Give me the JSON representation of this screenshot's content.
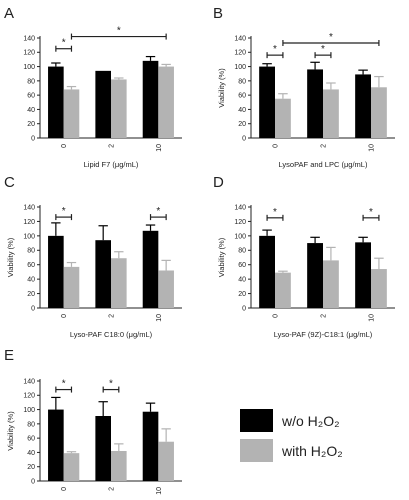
{
  "legend": {
    "items": [
      {
        "label": "w/o H₂O₂",
        "color": "#000000"
      },
      {
        "label": "with H₂O₂",
        "color": "#b3b3b3"
      }
    ]
  },
  "chart_data": [
    {
      "type": "bar",
      "panel_label": "A",
      "categories": [
        "0",
        "2",
        "10"
      ],
      "xlabel": "Lipid F7 (μg/mL)",
      "ylabel": "",
      "ylim": [
        0,
        140
      ],
      "yticks": [
        0,
        20,
        40,
        60,
        80,
        100,
        120,
        140
      ],
      "series": [
        {
          "name": "w/o H₂O₂",
          "values": [
            100,
            94,
            108
          ],
          "errors": [
            5,
            0,
            6
          ]
        },
        {
          "name": "with H₂O₂",
          "values": [
            68,
            82,
            100
          ],
          "errors": [
            4,
            2,
            3
          ]
        }
      ],
      "significance": [
        {
          "from": {
            "cat": 0,
            "series": 0
          },
          "to": {
            "cat": 0,
            "series": 1
          },
          "y": 125,
          "label": "*"
        },
        {
          "from": {
            "cat": 0,
            "series": 1
          },
          "to": {
            "cat": 2,
            "series": 1
          },
          "y": 142,
          "label": "*"
        }
      ]
    },
    {
      "type": "bar",
      "panel_label": "B",
      "categories": [
        "0",
        "2",
        "10"
      ],
      "xlabel": "LysoPAF and LPC (μg/mL)",
      "ylabel": "Viability (%)",
      "ylim": [
        0,
        140
      ],
      "yticks": [
        0,
        20,
        40,
        60,
        80,
        100,
        120,
        140
      ],
      "series": [
        {
          "name": "w/o H₂O₂",
          "values": [
            100,
            96,
            89
          ],
          "errors": [
            4,
            10,
            6
          ]
        },
        {
          "name": "with H₂O₂",
          "values": [
            55,
            68,
            71
          ],
          "errors": [
            7,
            9,
            15
          ]
        }
      ],
      "significance": [
        {
          "from": {
            "cat": 0,
            "series": 0
          },
          "to": {
            "cat": 0,
            "series": 1
          },
          "y": 116,
          "label": "*"
        },
        {
          "from": {
            "cat": 1,
            "series": 0
          },
          "to": {
            "cat": 1,
            "series": 1
          },
          "y": 116,
          "label": "*"
        },
        {
          "from": {
            "cat": 0,
            "series": 1
          },
          "to": {
            "cat": 2,
            "series": 1
          },
          "y": 133,
          "label": "*"
        }
      ]
    },
    {
      "type": "bar",
      "panel_label": "C",
      "categories": [
        "0",
        "2",
        "10"
      ],
      "xlabel": "Lyso-PAF C18:0 (μg/mL)",
      "ylabel": "Viability (%)",
      "ylim": [
        0,
        140
      ],
      "yticks": [
        0,
        20,
        40,
        60,
        80,
        100,
        120,
        140
      ],
      "series": [
        {
          "name": "w/o H₂O₂",
          "values": [
            100,
            94,
            107
          ],
          "errors": [
            18,
            20,
            8
          ]
        },
        {
          "name": "with H₂O₂",
          "values": [
            57,
            69,
            52
          ],
          "errors": [
            6,
            9,
            14
          ]
        }
      ],
      "significance": [
        {
          "from": {
            "cat": 0,
            "series": 0
          },
          "to": {
            "cat": 0,
            "series": 1
          },
          "y": 126,
          "label": "*"
        },
        {
          "from": {
            "cat": 2,
            "series": 0
          },
          "to": {
            "cat": 2,
            "series": 1
          },
          "y": 126,
          "label": "*"
        }
      ]
    },
    {
      "type": "bar",
      "panel_label": "D",
      "categories": [
        "0",
        "2",
        "10"
      ],
      "xlabel": "Lyso-PAF (9Z)-C18:1 (μg/mL)",
      "ylabel": "Viability (%)",
      "ylim": [
        0,
        140
      ],
      "yticks": [
        0,
        20,
        40,
        60,
        80,
        100,
        120,
        140
      ],
      "series": [
        {
          "name": "w/o H₂O₂",
          "values": [
            100,
            90,
            91
          ],
          "errors": [
            8,
            8,
            7
          ]
        },
        {
          "name": "with H₂O₂",
          "values": [
            49,
            66,
            54
          ],
          "errors": [
            2,
            18,
            15
          ]
        }
      ],
      "significance": [
        {
          "from": {
            "cat": 0,
            "series": 0
          },
          "to": {
            "cat": 0,
            "series": 1
          },
          "y": 125,
          "label": "*"
        },
        {
          "from": {
            "cat": 2,
            "series": 0
          },
          "to": {
            "cat": 2,
            "series": 1
          },
          "y": 125,
          "label": "*"
        }
      ]
    },
    {
      "type": "bar",
      "panel_label": "E",
      "categories": [
        "0",
        "2",
        "10"
      ],
      "xlabel": "LPC (μg/mL)",
      "ylabel": "Viability (%)",
      "ylim": [
        0,
        140
      ],
      "yticks": [
        0,
        20,
        40,
        60,
        80,
        100,
        120,
        140
      ],
      "series": [
        {
          "name": "w/o H₂O₂",
          "values": [
            100,
            91,
            97
          ],
          "errors": [
            17,
            20,
            12
          ]
        },
        {
          "name": "with H₂O₂",
          "values": [
            39,
            42,
            55
          ],
          "errors": [
            2,
            10,
            18
          ]
        }
      ],
      "significance": [
        {
          "from": {
            "cat": 0,
            "series": 0
          },
          "to": {
            "cat": 0,
            "series": 1
          },
          "y": 128,
          "label": "*"
        },
        {
          "from": {
            "cat": 1,
            "series": 0
          },
          "to": {
            "cat": 1,
            "series": 1
          },
          "y": 128,
          "label": "*"
        }
      ]
    }
  ]
}
